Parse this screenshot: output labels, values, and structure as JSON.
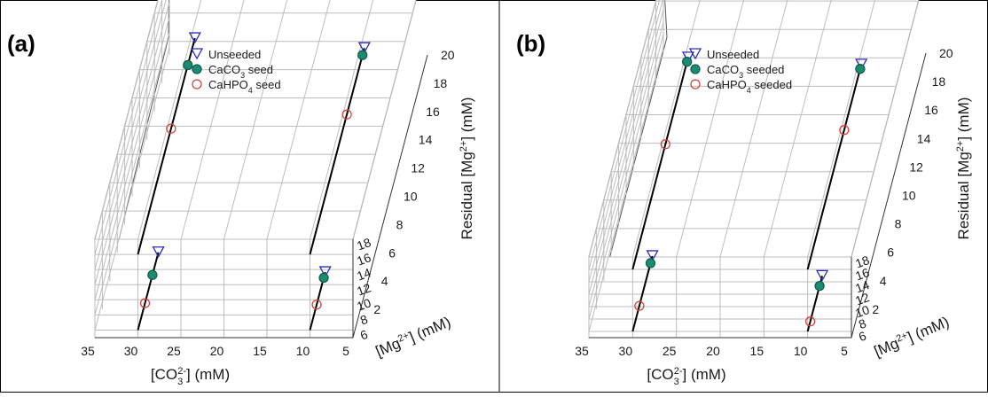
{
  "chart_data": [
    {
      "type": "scatter3d",
      "panel_label": "(a)",
      "xlabel": "[CO3 2-] (mM)",
      "ylabel": "[Mg2+] (mM)",
      "zlabel": "Residual [Mg2+] (mM)",
      "x_ticks": [
        35,
        30,
        25,
        20,
        15,
        10,
        5
      ],
      "y_ticks": [
        6,
        8,
        10,
        12,
        14,
        16,
        18
      ],
      "z_ticks": [
        2,
        4,
        6,
        8,
        10,
        12,
        14,
        16,
        18,
        20
      ],
      "xlim": [
        35,
        5
      ],
      "ylim": [
        5,
        18
      ],
      "zlim": [
        0,
        20
      ],
      "legend_position": "top-center",
      "points": [
        {
          "x": 30,
          "y": 6,
          "series": [
            5.5,
            3.9,
            1.9
          ]
        },
        {
          "x": 30,
          "y": 16,
          "series": [
            15.3,
            13.4,
            8.9
          ]
        },
        {
          "x": 10,
          "y": 6,
          "series": [
            4.1,
            3.7,
            1.8
          ]
        },
        {
          "x": 10,
          "y": 16,
          "series": [
            14.6,
            14.1,
            9.9
          ]
        }
      ],
      "series": [
        {
          "name": "Unseeded",
          "marker": "triangle-down",
          "color": "#2d2db4",
          "fill": "none"
        },
        {
          "name": "CaCO",
          "sub": "3",
          "suffix": " seed",
          "marker": "circle",
          "color": "#0f5f4c",
          "fill": "#1b8c72"
        },
        {
          "name": "CaHPO",
          "sub": "4",
          "suffix": " seed",
          "marker": "circle",
          "color": "#d9413b",
          "fill": "none"
        }
      ]
    },
    {
      "type": "scatter3d",
      "panel_label": "(b)",
      "xlabel": "[CO3 2-] (mM)",
      "ylabel": "[Mg2+] (mM)",
      "zlabel": "Residual [Mg2+] (mM)",
      "x_ticks": [
        35,
        30,
        25,
        20,
        15,
        10,
        5
      ],
      "y_ticks": [
        6,
        8,
        10,
        12,
        14,
        16,
        18
      ],
      "z_ticks": [
        2,
        4,
        6,
        8,
        10,
        12,
        14,
        16,
        18,
        20
      ],
      "xlim": [
        35,
        5
      ],
      "ylim": [
        5,
        18
      ],
      "zlim": [
        0,
        20
      ],
      "legend_position": "top-center",
      "points": [
        {
          "x": 30,
          "y": 6,
          "series": [
            5.3,
            4.8,
            1.8
          ]
        },
        {
          "x": 30,
          "y": 16,
          "series": [
            14.9,
            14.6,
            8.8
          ]
        },
        {
          "x": 10,
          "y": 6,
          "series": [
            3.9,
            3.2,
            0.7
          ]
        },
        {
          "x": 10,
          "y": 16,
          "series": [
            14.4,
            14.1,
            9.8
          ]
        }
      ],
      "series": [
        {
          "name": "Unseeded",
          "marker": "triangle-down",
          "color": "#2d2db4",
          "fill": "none"
        },
        {
          "name": "CaCO",
          "sub": "3",
          "suffix": " seeded",
          "marker": "circle",
          "color": "#0f5f4c",
          "fill": "#1b8c72"
        },
        {
          "name": "CaHPO",
          "sub": "4",
          "suffix": " seeded",
          "marker": "circle",
          "color": "#d9413b",
          "fill": "none"
        }
      ]
    }
  ]
}
